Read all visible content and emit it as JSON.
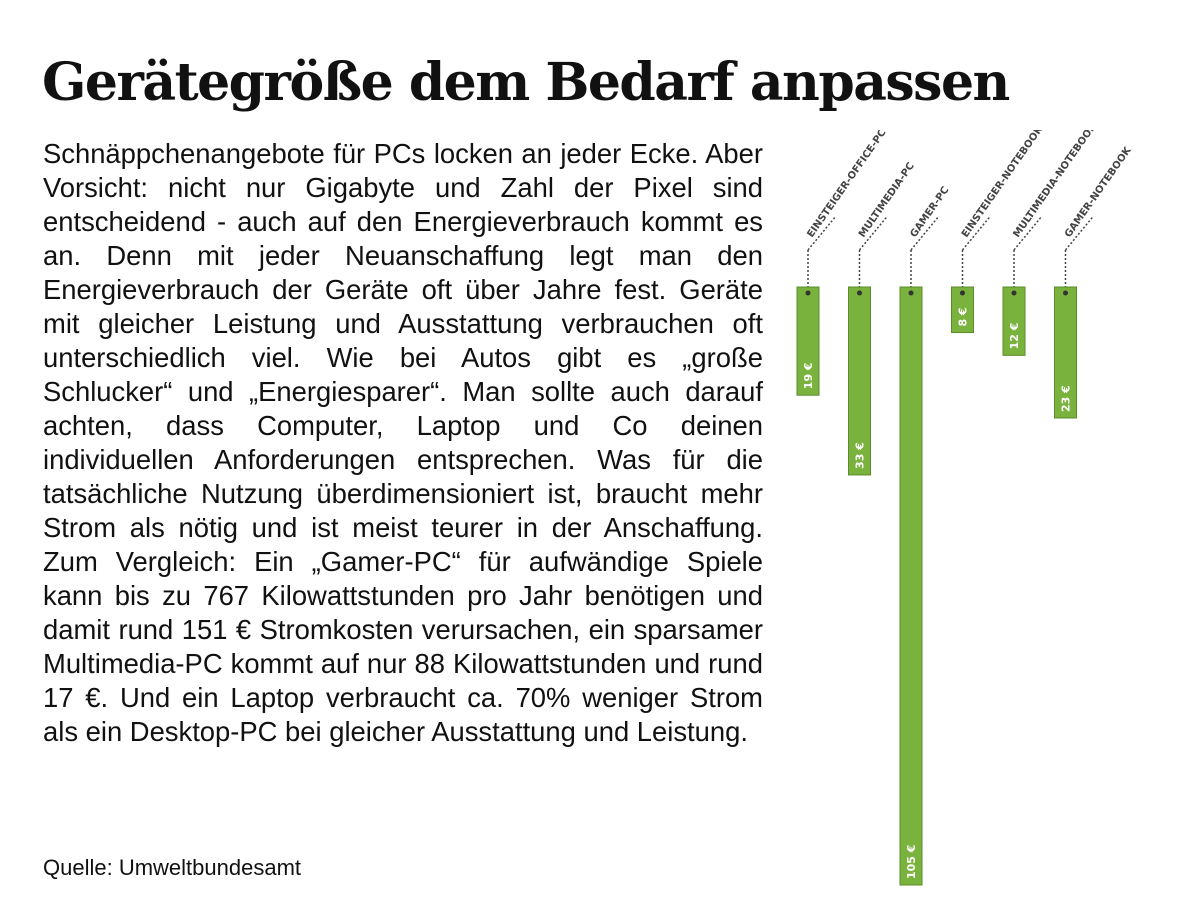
{
  "title": "Gerätegröße dem Bedarf anpassen",
  "body_text": "Schnäppchenangebote für PCs locken an jeder Ecke. Aber Vorsicht: nicht nur Gigabyte und Zahl der Pixel sind entscheidend - auch auf den Energieverbrauch kommt es an. Denn mit jeder Neuanschaffung legt man den Energieverbrauch der Geräte oft über Jahre fest. Geräte mit gleicher Leistung und Ausstattung verbrauchen oft unterschiedlich viel. Wie bei Autos gibt es „große Schlucker“ und „Energiesparer“. Man sollte auch darauf achten, dass Computer, Laptop und Co deinen individuellen Anforderungen entsprechen. Was für die tatsächliche Nutzung überdimensioniert ist, braucht mehr Strom als nötig und ist meist teurer in der Anschaffung. Zum Vergleich: Ein „Gamer-PC“ für aufwändige Spiele kann bis zu 767 Kilowattstunden pro Jahr benötigen und damit rund 151 € Stromkosten verursachen, ein sparsamer Multimedia-PC kommt auf nur 88 Kilowattstunden und rund 17 €. Und ein Laptop verbraucht ca. 70% weniger Strom als ein Desktop-PC bei gleicher Ausstattung und Leistung.",
  "source": "Quelle: Umweltbundesamt",
  "colors": {
    "bar": "#7ab23e",
    "bar_border": "#5a8c2a",
    "text": "#111111"
  },
  "chart_data": {
    "type": "bar",
    "orientation": "vertical-down",
    "categories": [
      "EINSTEIGER-OFFICE-PC",
      "MULTIMEDIA-PC",
      "GAMER-PC",
      "EINSTEIGER-NOTEBOOK",
      "MULTIMEDIA-NOTEBOOK",
      "GAMER-NOTEBOOK"
    ],
    "values": [
      19,
      33,
      105,
      8,
      12,
      23
    ],
    "value_labels": [
      "19 €",
      "33 €",
      "105 €",
      "8 €",
      "12 €",
      "23 €"
    ],
    "unit": "€",
    "title": "",
    "xlabel": "",
    "ylabel": "",
    "grid": false
  }
}
